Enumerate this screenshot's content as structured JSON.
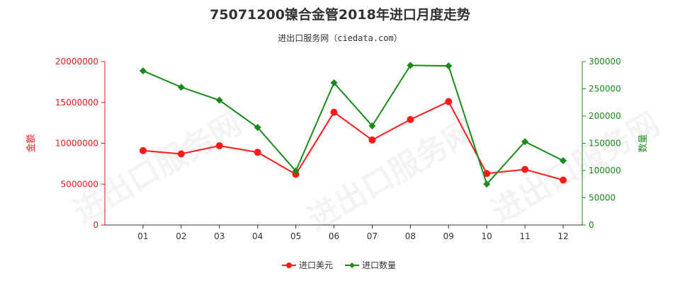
{
  "title": "75071200镍合金管2018年进口月度走势",
  "subtitle": "进出口服务网（ciedata.com）",
  "watermark": "进出口服务网",
  "colors": {
    "left_axis": "#e31a1c",
    "right_axis": "#1a8a1a",
    "amount": "#ff1a1a",
    "quantity": "#1a8a1a"
  },
  "chart_data": {
    "type": "line",
    "categories": [
      "01",
      "02",
      "03",
      "04",
      "05",
      "06",
      "07",
      "08",
      "09",
      "10",
      "11",
      "12"
    ],
    "left_axis": {
      "label": "金额",
      "ylim": [
        0,
        20000000
      ],
      "ticks": [
        "0",
        "5000000",
        "10000000",
        "15000000",
        "20000000"
      ],
      "tick_values": [
        0,
        5000000,
        10000000,
        15000000,
        20000000
      ]
    },
    "right_axis": {
      "label": "数量",
      "ylim": [
        0,
        300000
      ],
      "ticks": [
        "0",
        "50000",
        "100000",
        "150000",
        "200000",
        "250000",
        "300000"
      ],
      "tick_values": [
        0,
        50000,
        100000,
        150000,
        200000,
        250000,
        300000
      ]
    },
    "series": [
      {
        "name": "进口美元",
        "axis": "left",
        "marker": "circle",
        "values": [
          9100000,
          8700000,
          9700000,
          8900000,
          6200000,
          13800000,
          10400000,
          12900000,
          15100000,
          6300000,
          6800000,
          5500000
        ]
      },
      {
        "name": "进口数量",
        "axis": "right",
        "marker": "diamond",
        "values": [
          283000,
          253000,
          229000,
          179000,
          99000,
          261000,
          182000,
          293000,
          292000,
          75000,
          153000,
          118000
        ]
      }
    ],
    "legend_position": "bottom-center",
    "grid": false
  }
}
